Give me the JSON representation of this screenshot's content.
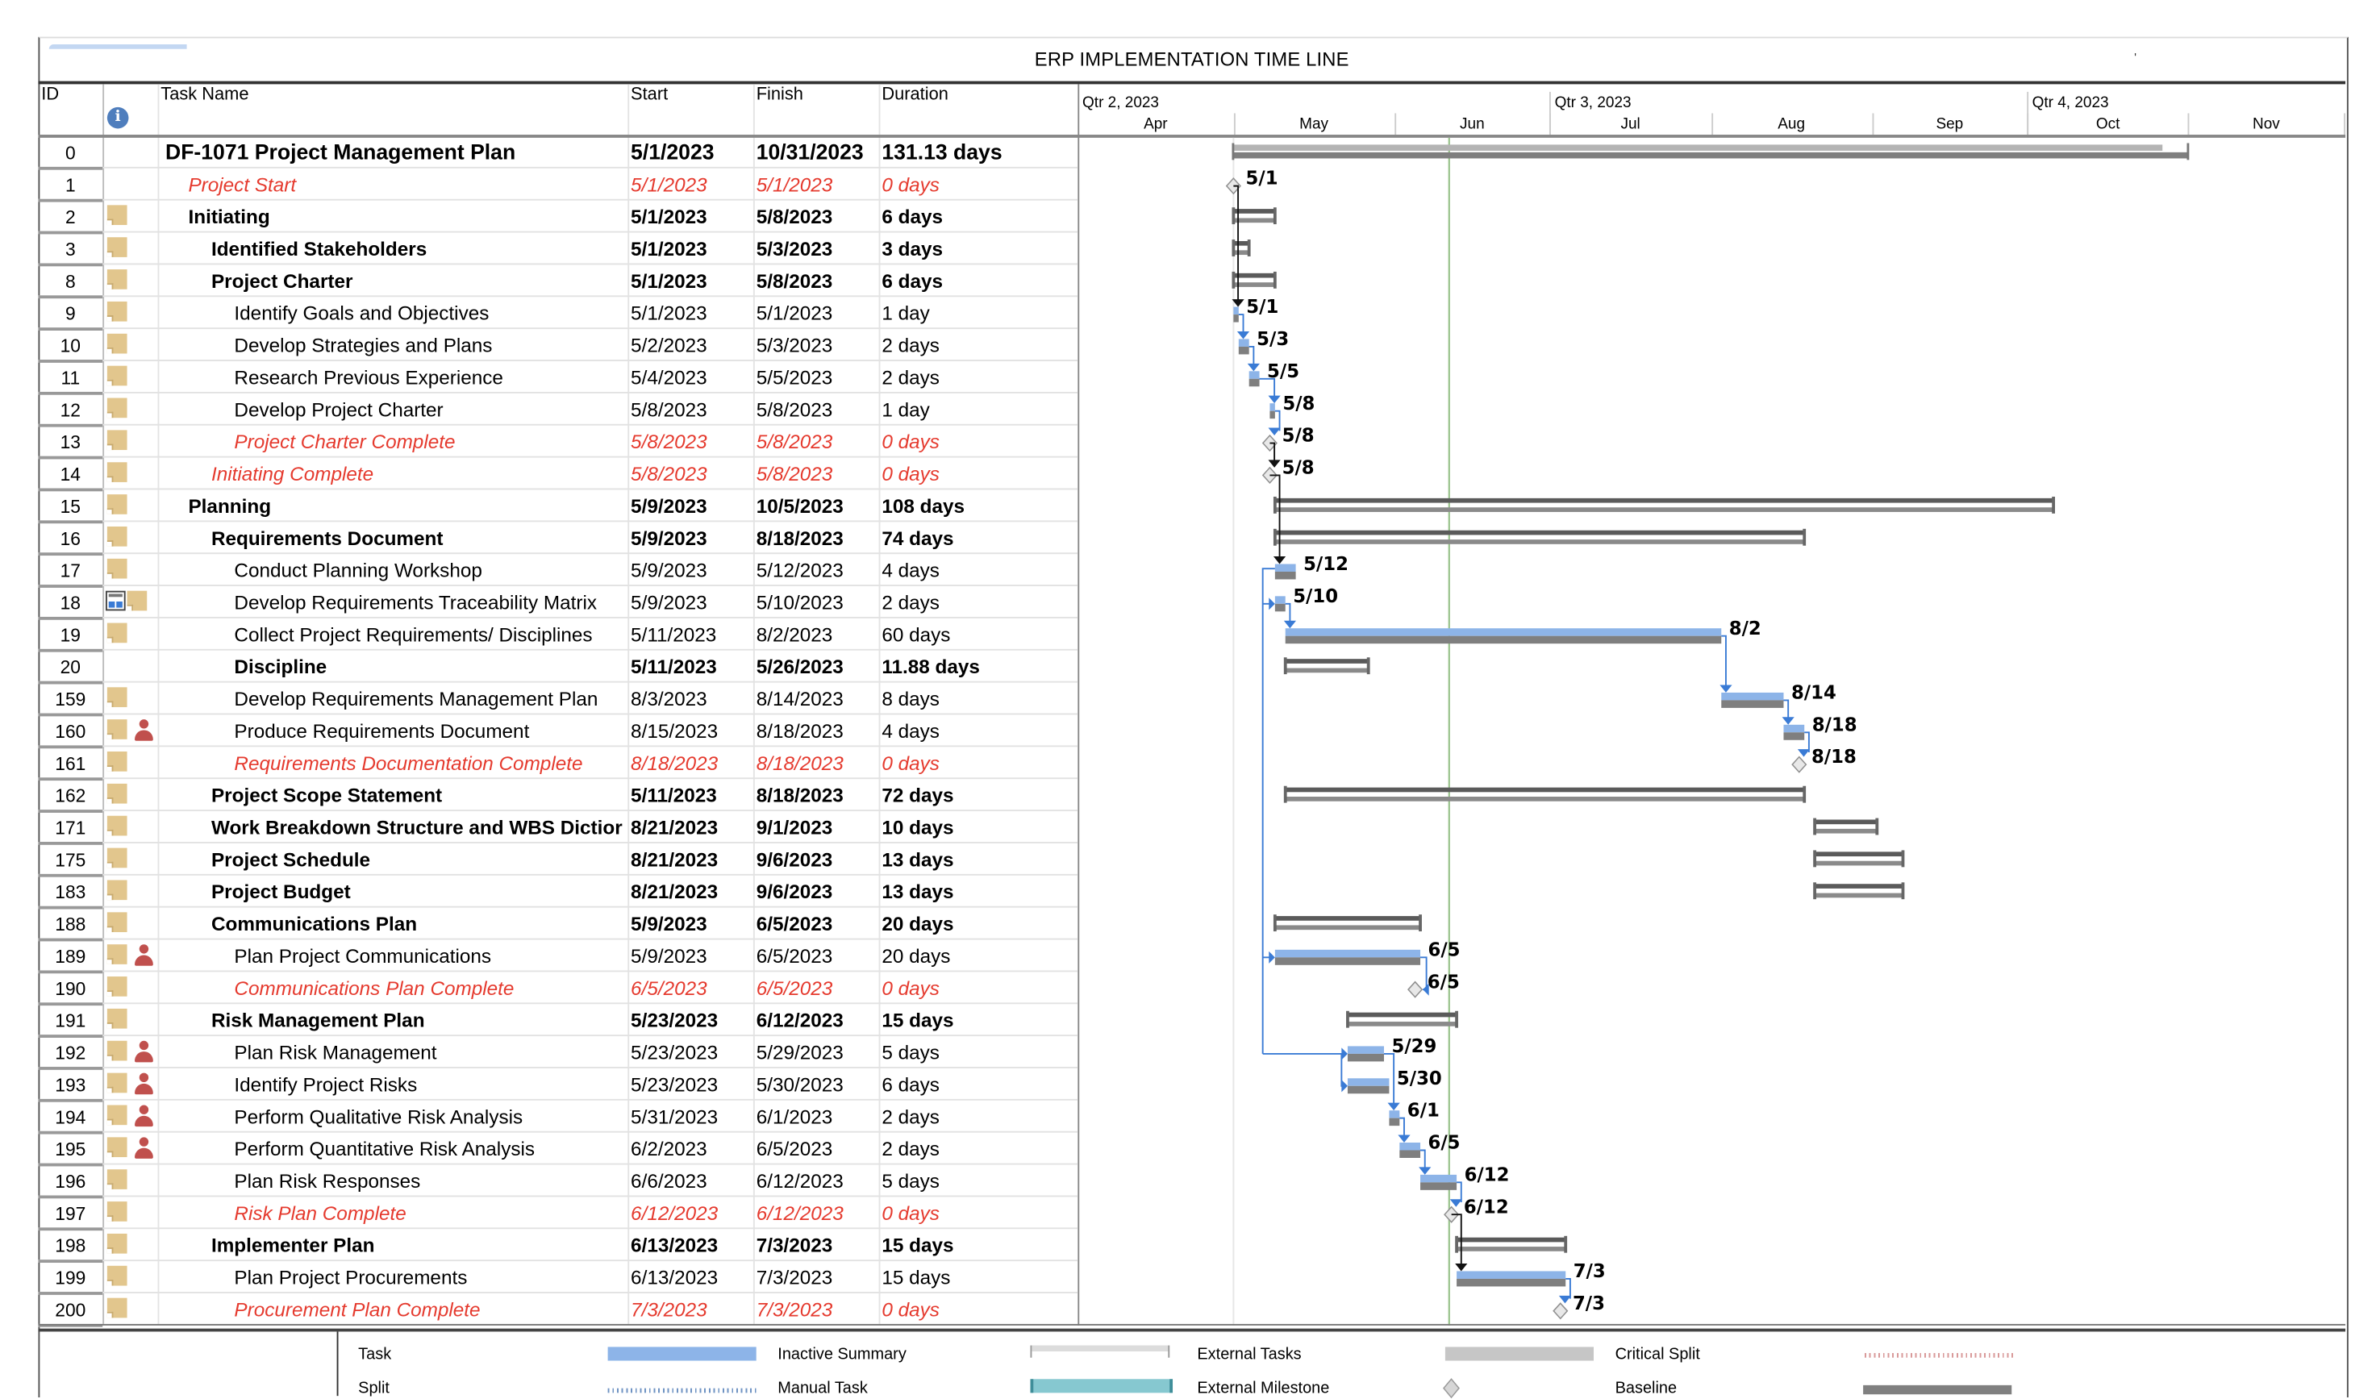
{
  "title": "ERP  IMPLEMENTATION TIME LINE",
  "columns": {
    "id": "ID",
    "indicators": "info-icon",
    "task_name": "Task Name",
    "start": "Start",
    "finish": "Finish",
    "duration": "Duration"
  },
  "timescale": {
    "quarters": [
      "Qtr 2, 2023",
      "Qtr 3, 2023",
      "Qtr 4, 2023"
    ],
    "months": [
      "Apr",
      "May",
      "Jun",
      "Jul",
      "Aug",
      "Sep",
      "Oct",
      "Nov"
    ],
    "status_date": "2023-06-12"
  },
  "colors": {
    "task_bar": "#8db4e8",
    "baseline": "#7f7f7f",
    "summary": "#5a5a5a",
    "critical_text": "#e53a2e",
    "link": "#3a7bd5",
    "status_line": "#9cc58f"
  },
  "tasks": [
    {
      "id": "0",
      "name": "DF-1071 Project Management Plan",
      "start": "5/1/2023",
      "finish": "10/31/2023",
      "duration": "131.13 days",
      "style": "project",
      "indent": 0,
      "icons": [],
      "s": "2023-05-01",
      "f": "2023-10-31",
      "label": ""
    },
    {
      "id": "1",
      "name": "Project Start",
      "start": "5/1/2023",
      "finish": "5/1/2023",
      "duration": "0 days",
      "style": "milestone",
      "indent": 1,
      "icons": [],
      "s": "2023-05-01",
      "f": "2023-05-01",
      "label": "5/1"
    },
    {
      "id": "2",
      "name": "Initiating",
      "start": "5/1/2023",
      "finish": "5/8/2023",
      "duration": "6 days",
      "style": "summary",
      "indent": 1,
      "icons": [
        "note"
      ],
      "s": "2023-05-01",
      "f": "2023-05-08",
      "label": ""
    },
    {
      "id": "3",
      "name": "Identified Stakeholders",
      "start": "5/1/2023",
      "finish": "5/3/2023",
      "duration": "3 days",
      "style": "summary",
      "indent": 2,
      "icons": [
        "note"
      ],
      "s": "2023-05-01",
      "f": "2023-05-03",
      "label": ""
    },
    {
      "id": "8",
      "name": "Project Charter",
      "start": "5/1/2023",
      "finish": "5/8/2023",
      "duration": "6 days",
      "style": "summary",
      "indent": 2,
      "icons": [
        "note"
      ],
      "s": "2023-05-01",
      "f": "2023-05-08",
      "label": ""
    },
    {
      "id": "9",
      "name": "Identify Goals and Objectives",
      "start": "5/1/2023",
      "finish": "5/1/2023",
      "duration": "1 day",
      "style": "task",
      "indent": 3,
      "icons": [
        "note"
      ],
      "s": "2023-05-01",
      "f": "2023-05-01",
      "label": "5/1"
    },
    {
      "id": "10",
      "name": "Develop Strategies and Plans",
      "start": "5/2/2023",
      "finish": "5/3/2023",
      "duration": "2 days",
      "style": "task",
      "indent": 3,
      "icons": [
        "note"
      ],
      "s": "2023-05-02",
      "f": "2023-05-03",
      "label": "5/3"
    },
    {
      "id": "11",
      "name": "Research Previous Experience",
      "start": "5/4/2023",
      "finish": "5/5/2023",
      "duration": "2 days",
      "style": "task",
      "indent": 3,
      "icons": [
        "note"
      ],
      "s": "2023-05-04",
      "f": "2023-05-05",
      "label": "5/5"
    },
    {
      "id": "12",
      "name": "Develop Project Charter",
      "start": "5/8/2023",
      "finish": "5/8/2023",
      "duration": "1 day",
      "style": "task",
      "indent": 3,
      "icons": [
        "note"
      ],
      "s": "2023-05-08",
      "f": "2023-05-08",
      "label": "5/8"
    },
    {
      "id": "13",
      "name": "Project Charter Complete",
      "start": "5/8/2023",
      "finish": "5/8/2023",
      "duration": "0 days",
      "style": "milestone",
      "indent": 3,
      "icons": [
        "note"
      ],
      "s": "2023-05-08",
      "f": "2023-05-08",
      "label": "5/8"
    },
    {
      "id": "14",
      "name": "Initiating Complete",
      "start": "5/8/2023",
      "finish": "5/8/2023",
      "duration": "0 days",
      "style": "milestone",
      "indent": 2,
      "icons": [
        "note"
      ],
      "s": "2023-05-08",
      "f": "2023-05-08",
      "label": "5/8"
    },
    {
      "id": "15",
      "name": "Planning",
      "start": "5/9/2023",
      "finish": "10/5/2023",
      "duration": "108 days",
      "style": "summary",
      "indent": 1,
      "icons": [
        "note"
      ],
      "s": "2023-05-09",
      "f": "2023-10-05",
      "label": ""
    },
    {
      "id": "16",
      "name": "Requirements Document",
      "start": "5/9/2023",
      "finish": "8/18/2023",
      "duration": "74 days",
      "style": "summary",
      "indent": 2,
      "icons": [
        "note"
      ],
      "s": "2023-05-09",
      "f": "2023-08-18",
      "label": ""
    },
    {
      "id": "17",
      "name": "Conduct Planning Workshop",
      "start": "5/9/2023",
      "finish": "5/12/2023",
      "duration": "4 days",
      "style": "task",
      "indent": 3,
      "icons": [
        "note"
      ],
      "s": "2023-05-09",
      "f": "2023-05-12",
      "label": "5/12"
    },
    {
      "id": "18",
      "name": "Develop Requirements Traceability Matrix",
      "start": "5/9/2023",
      "finish": "5/10/2023",
      "duration": "2 days",
      "style": "task",
      "indent": 3,
      "icons": [
        "calendar",
        "note"
      ],
      "s": "2023-05-09",
      "f": "2023-05-10",
      "label": "5/10"
    },
    {
      "id": "19",
      "name": "Collect Project Requirements/ Disciplines",
      "start": "5/11/2023",
      "finish": "8/2/2023",
      "duration": "60 days",
      "style": "task",
      "indent": 3,
      "icons": [
        "note"
      ],
      "s": "2023-05-11",
      "f": "2023-08-02",
      "label": "8/2"
    },
    {
      "id": "20",
      "name": "Discipline",
      "start": "5/11/2023",
      "finish": "5/26/2023",
      "duration": "11.88 days",
      "style": "summary",
      "indent": 3,
      "icons": [],
      "s": "2023-05-11",
      "f": "2023-05-26",
      "label": ""
    },
    {
      "id": "159",
      "name": "Develop Requirements Management Plan",
      "start": "8/3/2023",
      "finish": "8/14/2023",
      "duration": "8 days",
      "style": "task",
      "indent": 3,
      "icons": [
        "note"
      ],
      "s": "2023-08-03",
      "f": "2023-08-14",
      "label": "8/14"
    },
    {
      "id": "160",
      "name": "Produce Requirements Document",
      "start": "8/15/2023",
      "finish": "8/18/2023",
      "duration": "4 days",
      "style": "task",
      "indent": 3,
      "icons": [
        "note",
        "person"
      ],
      "s": "2023-08-15",
      "f": "2023-08-18",
      "label": "8/18"
    },
    {
      "id": "161",
      "name": "Requirements Documentation Complete",
      "start": "8/18/2023",
      "finish": "8/18/2023",
      "duration": "0 days",
      "style": "milestone",
      "indent": 3,
      "icons": [
        "note"
      ],
      "s": "2023-08-18",
      "f": "2023-08-18",
      "label": "8/18"
    },
    {
      "id": "162",
      "name": "Project Scope Statement",
      "start": "5/11/2023",
      "finish": "8/18/2023",
      "duration": "72 days",
      "style": "summary",
      "indent": 2,
      "icons": [
        "note"
      ],
      "s": "2023-05-11",
      "f": "2023-08-18",
      "label": ""
    },
    {
      "id": "171",
      "name": "Work Breakdown Structure and WBS Dictior",
      "start": "8/21/2023",
      "finish": "9/1/2023",
      "duration": "10 days",
      "style": "summary",
      "indent": 2,
      "icons": [
        "note"
      ],
      "s": "2023-08-21",
      "f": "2023-09-01",
      "label": ""
    },
    {
      "id": "175",
      "name": "Project Schedule",
      "start": "8/21/2023",
      "finish": "9/6/2023",
      "duration": "13 days",
      "style": "summary",
      "indent": 2,
      "icons": [
        "note"
      ],
      "s": "2023-08-21",
      "f": "2023-09-06",
      "label": ""
    },
    {
      "id": "183",
      "name": "Project Budget",
      "start": "8/21/2023",
      "finish": "9/6/2023",
      "duration": "13 days",
      "style": "summary",
      "indent": 2,
      "icons": [
        "note"
      ],
      "s": "2023-08-21",
      "f": "2023-09-06",
      "label": ""
    },
    {
      "id": "188",
      "name": "Communications Plan",
      "start": "5/9/2023",
      "finish": "6/5/2023",
      "duration": "20 days",
      "style": "summary",
      "indent": 2,
      "icons": [
        "note"
      ],
      "s": "2023-05-09",
      "f": "2023-06-05",
      "label": ""
    },
    {
      "id": "189",
      "name": "Plan Project Communications",
      "start": "5/9/2023",
      "finish": "6/5/2023",
      "duration": "20 days",
      "style": "task",
      "indent": 3,
      "icons": [
        "note",
        "person"
      ],
      "s": "2023-05-09",
      "f": "2023-06-05",
      "label": "6/5"
    },
    {
      "id": "190",
      "name": "Communications Plan Complete",
      "start": "6/5/2023",
      "finish": "6/5/2023",
      "duration": "0 days",
      "style": "milestone",
      "indent": 3,
      "icons": [
        "note"
      ],
      "s": "2023-06-05",
      "f": "2023-06-05",
      "label": "6/5"
    },
    {
      "id": "191",
      "name": "Risk Management Plan",
      "start": "5/23/2023",
      "finish": "6/12/2023",
      "duration": "15 days",
      "style": "summary",
      "indent": 2,
      "icons": [
        "note"
      ],
      "s": "2023-05-23",
      "f": "2023-06-12",
      "label": ""
    },
    {
      "id": "192",
      "name": "Plan Risk Management",
      "start": "5/23/2023",
      "finish": "5/29/2023",
      "duration": "5 days",
      "style": "task",
      "indent": 3,
      "icons": [
        "note",
        "person"
      ],
      "s": "2023-05-23",
      "f": "2023-05-29",
      "label": "5/29"
    },
    {
      "id": "193",
      "name": "Identify Project Risks",
      "start": "5/23/2023",
      "finish": "5/30/2023",
      "duration": "6 days",
      "style": "task",
      "indent": 3,
      "icons": [
        "note",
        "person"
      ],
      "s": "2023-05-23",
      "f": "2023-05-30",
      "label": "5/30"
    },
    {
      "id": "194",
      "name": "Perform Qualitative Risk Analysis",
      "start": "5/31/2023",
      "finish": "6/1/2023",
      "duration": "2 days",
      "style": "task",
      "indent": 3,
      "icons": [
        "note",
        "person"
      ],
      "s": "2023-05-31",
      "f": "2023-06-01",
      "label": "6/1"
    },
    {
      "id": "195",
      "name": "Perform Quantitative Risk Analysis",
      "start": "6/2/2023",
      "finish": "6/5/2023",
      "duration": "2 days",
      "style": "task",
      "indent": 3,
      "icons": [
        "note",
        "person"
      ],
      "s": "2023-06-02",
      "f": "2023-06-05",
      "label": "6/5"
    },
    {
      "id": "196",
      "name": "Plan Risk Responses",
      "start": "6/6/2023",
      "finish": "6/12/2023",
      "duration": "5 days",
      "style": "task",
      "indent": 3,
      "icons": [
        "note"
      ],
      "s": "2023-06-06",
      "f": "2023-06-12",
      "label": "6/12"
    },
    {
      "id": "197",
      "name": "Risk Plan Complete",
      "start": "6/12/2023",
      "finish": "6/12/2023",
      "duration": "0 days",
      "style": "milestone",
      "indent": 3,
      "icons": [
        "note"
      ],
      "s": "2023-06-12",
      "f": "2023-06-12",
      "label": "6/12"
    },
    {
      "id": "198",
      "name": "Implementer Plan",
      "start": "6/13/2023",
      "finish": "7/3/2023",
      "duration": "15 days",
      "style": "summary",
      "indent": 2,
      "icons": [
        "note"
      ],
      "s": "2023-06-13",
      "f": "2023-07-03",
      "label": ""
    },
    {
      "id": "199",
      "name": "Plan Project Procurements",
      "start": "6/13/2023",
      "finish": "7/3/2023",
      "duration": "15 days",
      "style": "task",
      "indent": 3,
      "icons": [
        "note"
      ],
      "s": "2023-06-13",
      "f": "2023-07-03",
      "label": "7/3"
    },
    {
      "id": "200",
      "name": "Procurement Plan Complete",
      "start": "7/3/2023",
      "finish": "7/3/2023",
      "duration": "0 days",
      "style": "milestone",
      "indent": 3,
      "icons": [
        "note"
      ],
      "s": "2023-07-03",
      "f": "2023-07-03",
      "label": "7/3"
    }
  ],
  "legend": [
    {
      "label": "Task",
      "swatch": "task"
    },
    {
      "label": "Split",
      "swatch": "split"
    },
    {
      "label": "Inactive Summary",
      "swatch": "inactive-summary"
    },
    {
      "label": "Manual Task",
      "swatch": "manual-task"
    },
    {
      "label": "External Tasks",
      "swatch": "external-tasks"
    },
    {
      "label": "External Milestone",
      "swatch": "external-milestone"
    },
    {
      "label": "Critical Split",
      "swatch": "critical-split"
    },
    {
      "label": "Baseline",
      "swatch": "baseline"
    }
  ]
}
